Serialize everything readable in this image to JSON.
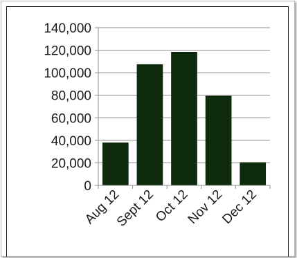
{
  "chart_data": {
    "type": "bar",
    "categories": [
      "Aug 12",
      "Sept 12",
      "Oct 12",
      "Nov 12",
      "Dec 12"
    ],
    "values": [
      38000,
      107500,
      118500,
      79500,
      20500
    ],
    "y_ticks": [
      "140,000",
      "120,000",
      "100,000",
      "80,000",
      "60,000",
      "40,000",
      "20,000",
      "0"
    ],
    "y_tick_values": [
      140000,
      120000,
      100000,
      80000,
      60000,
      40000,
      20000,
      0
    ],
    "ylim": [
      0,
      140000
    ],
    "grid": true,
    "bar_color": "#0d2a0c"
  }
}
